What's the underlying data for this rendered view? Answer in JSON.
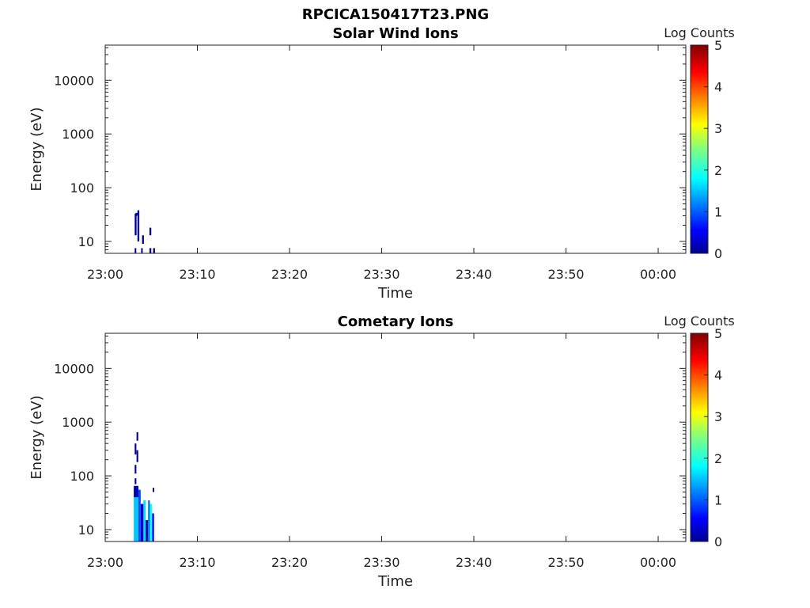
{
  "figure_title": "RPCICA150417T23.PNG",
  "chart_data": [
    {
      "type": "heatmap",
      "title": "Solar Wind Ions",
      "xlabel": "Time",
      "ylabel": "Energy (eV)",
      "x_ticks": [
        "23:00",
        "23:10",
        "23:20",
        "23:30",
        "23:40",
        "23:50",
        "00:00"
      ],
      "x_tick_minutes": [
        0,
        10,
        20,
        30,
        40,
        50,
        60
      ],
      "xlim_minutes": [
        0,
        63
      ],
      "y_scale": "log",
      "y_ticks": [
        "10",
        "100",
        "1000",
        "10000"
      ],
      "y_tick_values": [
        10,
        100,
        1000,
        10000
      ],
      "ylim": [
        6,
        45000
      ],
      "colorbar": {
        "label": "Log Counts",
        "ticks": [
          "0",
          "1",
          "2",
          "3",
          "4",
          "5"
        ],
        "range": [
          0,
          5
        ],
        "colormap": "jet"
      },
      "cells": [
        {
          "t": 3.2,
          "dt": 0.2,
          "e0": 13,
          "e1": 33,
          "v": 0.1
        },
        {
          "t": 3.3,
          "dt": 0.2,
          "e0": 30,
          "e1": 34,
          "v": 0.1
        },
        {
          "t": 3.5,
          "dt": 0.2,
          "e0": 10,
          "e1": 38,
          "v": 0.1
        },
        {
          "t": 3.2,
          "dt": 0.15,
          "e0": 6,
          "e1": 7.5,
          "v": 0.1
        },
        {
          "t": 4.0,
          "dt": 0.2,
          "e0": 9,
          "e1": 13,
          "v": 0.1
        },
        {
          "t": 3.9,
          "dt": 0.15,
          "e0": 6,
          "e1": 7.5,
          "v": 0.1
        },
        {
          "t": 4.8,
          "dt": 0.2,
          "e0": 13,
          "e1": 18,
          "v": 0.1
        },
        {
          "t": 4.8,
          "dt": 0.2,
          "e0": 6,
          "e1": 7.5,
          "v": 0.1
        },
        {
          "t": 5.2,
          "dt": 0.2,
          "e0": 6,
          "e1": 7.5,
          "v": 0.1
        }
      ]
    },
    {
      "type": "heatmap",
      "title": "Cometary Ions",
      "xlabel": "Time",
      "ylabel": "Energy (eV)",
      "x_ticks": [
        "23:00",
        "23:10",
        "23:20",
        "23:30",
        "23:40",
        "23:50",
        "00:00"
      ],
      "x_tick_minutes": [
        0,
        10,
        20,
        30,
        40,
        50,
        60
      ],
      "xlim_minutes": [
        0,
        63
      ],
      "y_scale": "log",
      "y_ticks": [
        "10",
        "100",
        "1000",
        "10000"
      ],
      "y_tick_values": [
        10,
        100,
        1000,
        10000
      ],
      "ylim": [
        6,
        45000
      ],
      "colorbar": {
        "label": "Log Counts",
        "ticks": [
          "0",
          "1",
          "2",
          "3",
          "4",
          "5"
        ],
        "range": [
          0,
          5
        ],
        "colormap": "jet"
      },
      "cells": [
        {
          "t": 3.4,
          "dt": 0.18,
          "e0": 450,
          "e1": 650,
          "v": 0.1
        },
        {
          "t": 3.2,
          "dt": 0.18,
          "e0": 250,
          "e1": 400,
          "v": 0.1
        },
        {
          "t": 3.4,
          "dt": 0.18,
          "e0": 180,
          "e1": 300,
          "v": 0.1
        },
        {
          "t": 3.2,
          "dt": 0.18,
          "e0": 110,
          "e1": 160,
          "v": 0.1
        },
        {
          "t": 3.2,
          "dt": 0.18,
          "e0": 70,
          "e1": 90,
          "v": 0.1
        },
        {
          "t": 3.1,
          "dt": 0.5,
          "e0": 6,
          "e1": 60,
          "v": 1.6
        },
        {
          "t": 3.1,
          "dt": 0.5,
          "e0": 40,
          "e1": 65,
          "v": 0.3
        },
        {
          "t": 3.6,
          "dt": 0.25,
          "e0": 6,
          "e1": 55,
          "v": 1.0
        },
        {
          "t": 3.85,
          "dt": 0.3,
          "e0": 6,
          "e1": 30,
          "v": 0.4
        },
        {
          "t": 4.15,
          "dt": 0.25,
          "e0": 6,
          "e1": 35,
          "v": 1.7
        },
        {
          "t": 4.4,
          "dt": 0.25,
          "e0": 6,
          "e1": 15,
          "v": 0.2
        },
        {
          "t": 4.65,
          "dt": 0.2,
          "e0": 6,
          "e1": 35,
          "v": 1.2
        },
        {
          "t": 4.85,
          "dt": 0.25,
          "e0": 6,
          "e1": 30,
          "v": 2.0
        },
        {
          "t": 5.1,
          "dt": 0.2,
          "e0": 6,
          "e1": 20,
          "v": 0.6
        },
        {
          "t": 5.15,
          "dt": 0.15,
          "e0": 50,
          "e1": 60,
          "v": 0.3
        }
      ]
    }
  ]
}
